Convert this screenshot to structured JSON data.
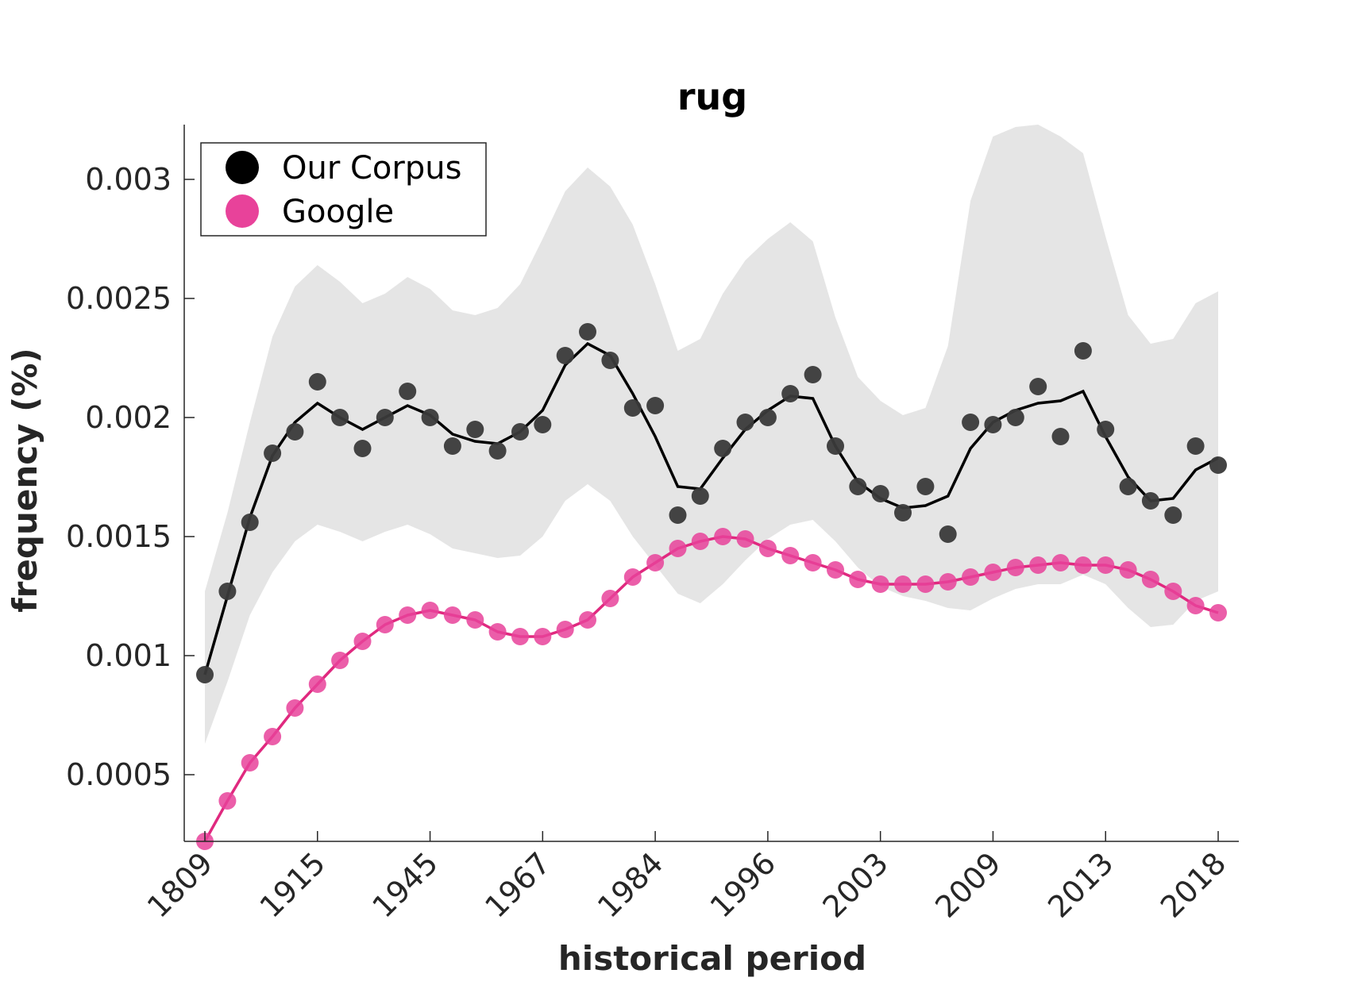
{
  "chart_data": {
    "type": "line",
    "title": "rug",
    "xlabel": "historical period",
    "ylabel": "frequency (%)",
    "x_tick_labels": [
      "1809",
      "1915",
      "1945",
      "1967",
      "1984",
      "1996",
      "2003",
      "2009",
      "2013",
      "2018"
    ],
    "y_ticks": [
      0.0005,
      0.001,
      0.0015,
      0.002,
      0.0025,
      0.003
    ],
    "y_tick_labels": [
      "0.0005",
      "0.001",
      "0.0015",
      "0.002",
      "0.0025",
      "0.003"
    ],
    "ylim": [
      0.00022,
      0.00323
    ],
    "legend_position": "top-left",
    "series": [
      {
        "name": "Our Corpus",
        "color": "#000000",
        "marker_color": "#3a3a3a",
        "points": [
          0.00092,
          0.00127,
          0.00156,
          0.00185,
          0.00194,
          0.00215,
          0.002,
          0.00187,
          0.002,
          0.00211,
          0.002,
          0.00188,
          0.00195,
          0.00186,
          0.00194,
          0.00197,
          0.00226,
          0.00236,
          0.00224,
          0.00204,
          0.00205,
          0.00159,
          0.00167,
          0.00187,
          0.00198,
          0.002,
          0.0021,
          0.00218,
          0.00188,
          0.00171,
          0.00168,
          0.0016,
          0.00171,
          0.00151,
          0.00198,
          0.00197,
          0.002,
          0.00213,
          0.00192,
          0.00228,
          0.00195,
          0.00171,
          0.00165,
          0.00159,
          0.00188,
          0.0018
        ],
        "trend": [
          0.00092,
          0.00125,
          0.00158,
          0.00184,
          0.00198,
          0.00206,
          0.002,
          0.00195,
          0.002,
          0.00205,
          0.00201,
          0.00193,
          0.0019,
          0.00189,
          0.00194,
          0.00203,
          0.00222,
          0.00231,
          0.00226,
          0.0021,
          0.00192,
          0.00171,
          0.0017,
          0.00183,
          0.00195,
          0.00203,
          0.00209,
          0.00208,
          0.00188,
          0.00173,
          0.00166,
          0.00162,
          0.00163,
          0.00167,
          0.00187,
          0.00198,
          0.00203,
          0.00206,
          0.00207,
          0.00211,
          0.00192,
          0.00175,
          0.00165,
          0.00166,
          0.00178,
          0.00183
        ],
        "band_upper": [
          0.00127,
          0.0016,
          0.00198,
          0.00234,
          0.00255,
          0.00264,
          0.00257,
          0.00248,
          0.00252,
          0.00259,
          0.00254,
          0.00245,
          0.00243,
          0.00246,
          0.00256,
          0.00275,
          0.00295,
          0.00305,
          0.00297,
          0.00281,
          0.00256,
          0.00228,
          0.00233,
          0.00252,
          0.00266,
          0.00275,
          0.00282,
          0.00274,
          0.00242,
          0.00217,
          0.00207,
          0.00201,
          0.00204,
          0.0023,
          0.00291,
          0.00318,
          0.00322,
          0.00323,
          0.00318,
          0.00311,
          0.00276,
          0.00243,
          0.00231,
          0.00233,
          0.00248,
          0.00253
        ],
        "band_lower": [
          0.00063,
          0.00089,
          0.00117,
          0.00135,
          0.00148,
          0.00155,
          0.00152,
          0.00148,
          0.00152,
          0.00155,
          0.00151,
          0.00145,
          0.00143,
          0.00141,
          0.00142,
          0.0015,
          0.00165,
          0.00172,
          0.00165,
          0.0015,
          0.00138,
          0.00126,
          0.00122,
          0.0013,
          0.0014,
          0.00149,
          0.00155,
          0.00157,
          0.00148,
          0.00137,
          0.00129,
          0.00125,
          0.00123,
          0.0012,
          0.00119,
          0.00124,
          0.00128,
          0.0013,
          0.0013,
          0.00134,
          0.0013,
          0.0012,
          0.00112,
          0.00113,
          0.00123,
          0.00127
        ]
      },
      {
        "name": "Google",
        "color": "#e0297f",
        "marker_color": "#e8429a",
        "points": [
          0.00022,
          0.00039,
          0.00055,
          0.00066,
          0.00078,
          0.00088,
          0.00098,
          0.00106,
          0.00113,
          0.00117,
          0.00119,
          0.00117,
          0.00115,
          0.0011,
          0.00108,
          0.00108,
          0.00111,
          0.00115,
          0.00124,
          0.00133,
          0.00139,
          0.00145,
          0.00148,
          0.0015,
          0.00149,
          0.00145,
          0.00142,
          0.00139,
          0.00136,
          0.00132,
          0.0013,
          0.0013,
          0.0013,
          0.00131,
          0.00133,
          0.00135,
          0.00137,
          0.00138,
          0.00139,
          0.00138,
          0.00138,
          0.00136,
          0.00132,
          0.00127,
          0.00121,
          0.00118
        ]
      }
    ]
  }
}
